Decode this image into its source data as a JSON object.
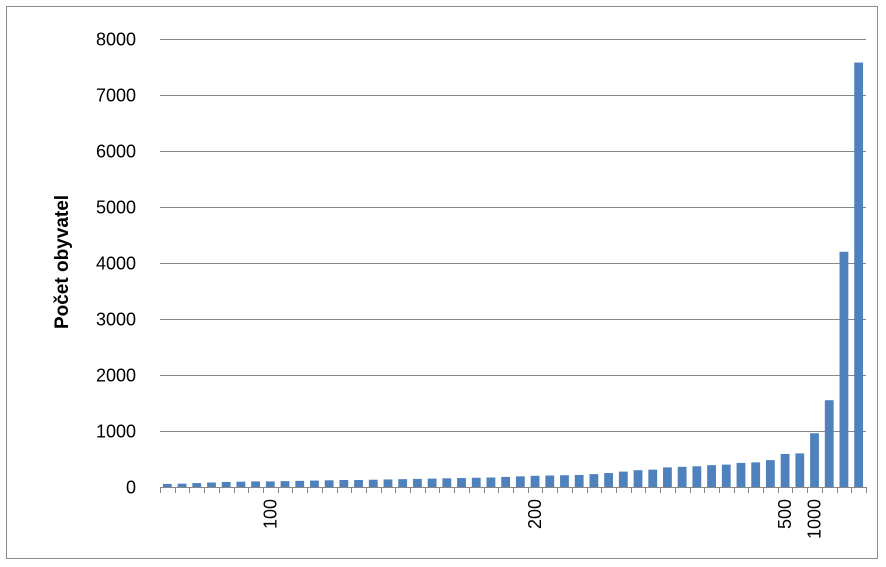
{
  "chart_data": {
    "type": "bar",
    "title": "",
    "xlabel": "",
    "ylabel": "Počet obyvatel",
    "ylim": [
      0,
      8000
    ],
    "yticks": [
      "0",
      "1000",
      "2000",
      "3000",
      "4000",
      "5000",
      "6000",
      "7000",
      "8000"
    ],
    "grid": true,
    "legend": "none",
    "bar_color": "#4f81bd",
    "gridline_color": "#878787",
    "x_tick_labels": [
      {
        "label": "100",
        "bar_index": 7
      },
      {
        "label": "200",
        "bar_index": 25
      },
      {
        "label": "500",
        "bar_index": 42
      },
      {
        "label": "1000",
        "bar_index": 44
      }
    ],
    "values": [
      55,
      60,
      70,
      80,
      90,
      95,
      100,
      100,
      105,
      110,
      115,
      120,
      125,
      125,
      130,
      135,
      140,
      145,
      150,
      155,
      160,
      165,
      170,
      180,
      190,
      200,
      205,
      210,
      215,
      230,
      250,
      275,
      300,
      310,
      350,
      360,
      370,
      390,
      400,
      430,
      440,
      480,
      590,
      600,
      960,
      1550,
      4200,
      7580
    ]
  }
}
